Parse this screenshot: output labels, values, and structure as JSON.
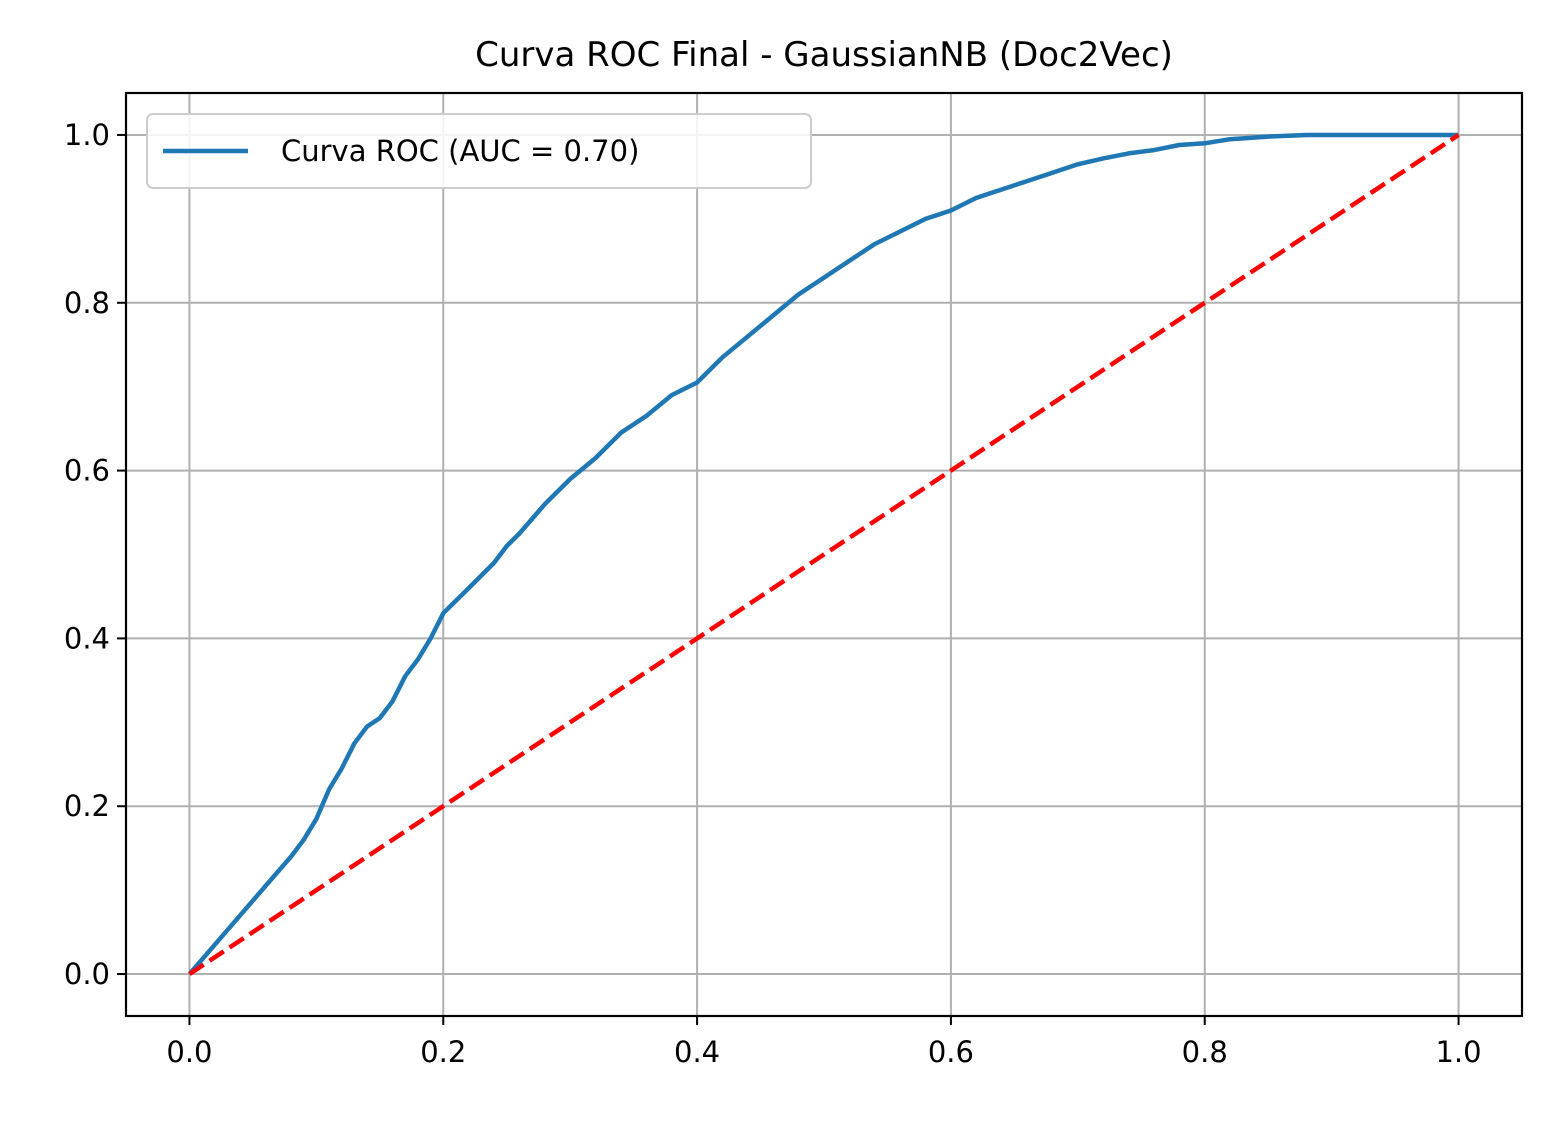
{
  "chart_data": {
    "type": "line",
    "title": "Curva ROC Final - GaussianNB (Doc2Vec)",
    "xlabel": "",
    "ylabel": "",
    "xlim": [
      -0.05,
      1.05
    ],
    "ylim": [
      -0.05,
      1.05
    ],
    "x_ticks": [
      "0.0",
      "0.2",
      "0.4",
      "0.6",
      "0.8",
      "1.0"
    ],
    "y_ticks": [
      "0.0",
      "0.2",
      "0.4",
      "0.6",
      "0.8",
      "1.0"
    ],
    "grid": true,
    "legend_position": "upper-left",
    "series": [
      {
        "name": "Curva ROC (AUC = 0.70)",
        "color": "#1f77b4",
        "style": "solid",
        "x": [
          0.0,
          0.02,
          0.04,
          0.06,
          0.08,
          0.09,
          0.1,
          0.11,
          0.12,
          0.13,
          0.14,
          0.15,
          0.16,
          0.17,
          0.18,
          0.19,
          0.2,
          0.22,
          0.24,
          0.25,
          0.26,
          0.28,
          0.3,
          0.32,
          0.34,
          0.36,
          0.38,
          0.4,
          0.42,
          0.44,
          0.46,
          0.48,
          0.5,
          0.52,
          0.54,
          0.56,
          0.58,
          0.6,
          0.62,
          0.64,
          0.66,
          0.68,
          0.7,
          0.72,
          0.74,
          0.76,
          0.78,
          0.8,
          0.82,
          0.85,
          0.88,
          0.92,
          0.96,
          1.0
        ],
        "y": [
          0.0,
          0.035,
          0.07,
          0.105,
          0.14,
          0.16,
          0.185,
          0.22,
          0.245,
          0.275,
          0.295,
          0.305,
          0.325,
          0.355,
          0.375,
          0.4,
          0.43,
          0.46,
          0.49,
          0.51,
          0.525,
          0.56,
          0.59,
          0.615,
          0.645,
          0.665,
          0.69,
          0.705,
          0.735,
          0.76,
          0.785,
          0.81,
          0.83,
          0.85,
          0.87,
          0.885,
          0.9,
          0.91,
          0.925,
          0.935,
          0.945,
          0.955,
          0.965,
          0.972,
          0.978,
          0.982,
          0.988,
          0.99,
          0.995,
          0.998,
          1.0,
          1.0,
          1.0,
          1.0
        ]
      },
      {
        "name": "",
        "color": "#ff0000",
        "style": "dashed",
        "x": [
          0.0,
          1.0
        ],
        "y": [
          0.0,
          1.0
        ]
      }
    ]
  }
}
